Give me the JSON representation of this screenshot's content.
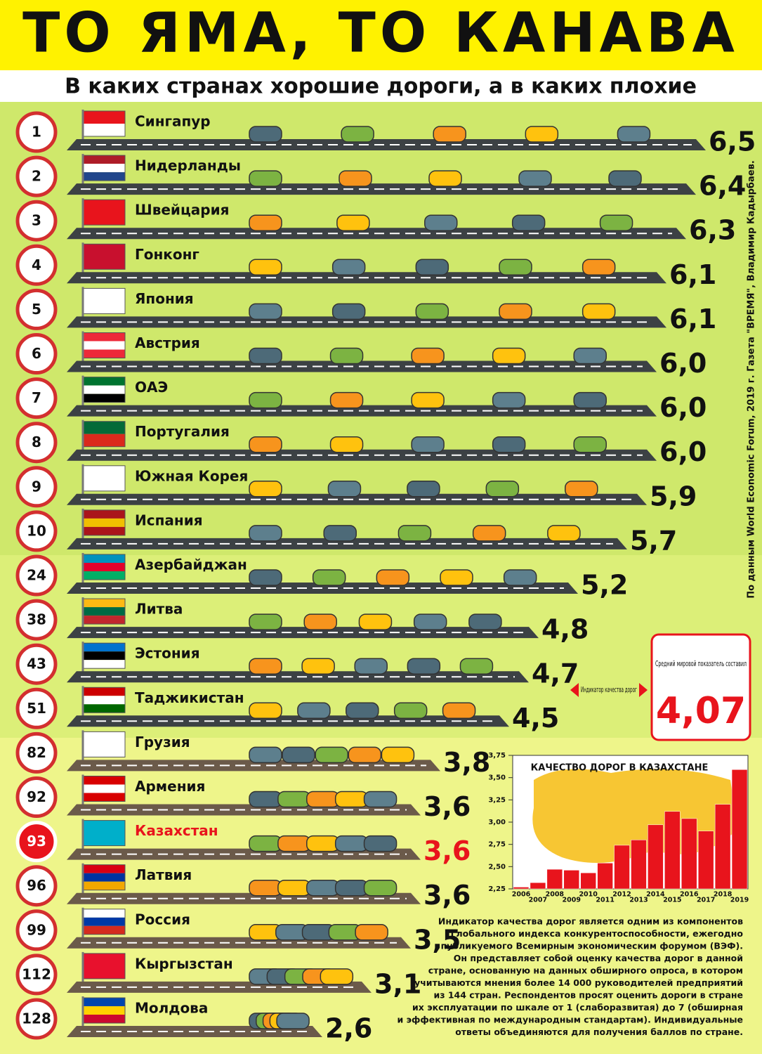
{
  "chart_data": [
    {
      "type": "road-bar",
      "title": "ТО ЯМА, ТО КАНАВА",
      "subtitle": "В каких странах хорошие дороги, а в каких плохие",
      "source": "По данным World Economic Forum, 2019 г. Газета \"ВРЕМЯ\", Владимир Кадырбаев.",
      "ranks": [
        1,
        2,
        3,
        4,
        5,
        6,
        7,
        8,
        9,
        10,
        24,
        38,
        43,
        51,
        82,
        92,
        93,
        96,
        99,
        112,
        128
      ],
      "categories": [
        "Сингапур",
        "Нидерланды",
        "Швейцария",
        "Гонконг",
        "Япония",
        "Австрия",
        "ОАЭ",
        "Португалия",
        "Южная Корея",
        "Испания",
        "Азербайджан",
        "Литва",
        "Эстония",
        "Таджикистан",
        "Грузия",
        "Армения",
        "Казахстан",
        "Латвия",
        "Россия",
        "Кыргызстан",
        "Молдова"
      ],
      "values": [
        6.5,
        6.4,
        6.3,
        6.1,
        6.1,
        6.0,
        6.0,
        6.0,
        5.9,
        5.7,
        5.2,
        4.8,
        4.7,
        4.5,
        3.8,
        3.6,
        3.6,
        3.6,
        3.5,
        3.1,
        2.6
      ],
      "value_labels": [
        "6,5",
        "6,4",
        "6,3",
        "6,1",
        "6,1",
        "6,0",
        "6,0",
        "6,0",
        "5,9",
        "5,7",
        "5,2",
        "4,8",
        "4,7",
        "4,5",
        "3,8",
        "3,6",
        "3,6",
        "3,6",
        "3,5",
        "3,1",
        "2,6"
      ],
      "xlim": [
        0,
        7
      ],
      "color": "#3c4144",
      "highlight": "Казахстан",
      "highlight_color": "#e8141c",
      "indicator_label": "Индикатор качества дорог",
      "world_average_text": "Средний мировой показатель составил",
      "world_average": {
        "value": 4.07,
        "label": "4,07"
      },
      "note": [
        "Индикатор качества дорог является одним из компонентов",
        "Глобального индекса конкурентоспособности, ежегодно",
        "публикуемого Всемирным экономическим форумом (ВЭФ).",
        "Он представляет собой оценку качества дорог в данной",
        "стране, основанную на данных обширного опроса, в котором",
        "учитываются мнения более 14 000 руководителей предприятий",
        "из 144 стран. Респондентов просят оценить дороги в стране",
        "их эксплуатации по шкале от 1 (слаборазвитая) до 7 (обширная",
        "и эффективная по международным стандартам). Индивидуальные",
        "ответы объединяются для получения баллов по стране."
      ]
    },
    {
      "type": "bar",
      "title": "КАЧЕСТВО ДОРОГ В КАЗАХСТАНЕ",
      "categories": [
        "2006",
        "2007",
        "2008",
        "2009",
        "2010",
        "2011",
        "2012",
        "2013",
        "2014",
        "2015",
        "2016",
        "2017",
        "2018",
        "2019"
      ],
      "values": [
        2.27,
        2.32,
        2.47,
        2.46,
        2.43,
        2.54,
        2.74,
        2.8,
        2.97,
        3.12,
        3.04,
        2.9,
        3.2,
        3.59
      ],
      "color": "#e8141c",
      "ylim": [
        2.25,
        3.75
      ],
      "yticks": [
        {
          "value": 2.25,
          "label": "2,25"
        },
        {
          "value": 2.5,
          "label": "2,50"
        },
        {
          "value": 2.75,
          "label": "2,75"
        },
        {
          "value": 3.0,
          "label": "3,00"
        },
        {
          "value": 3.25,
          "label": "3,25"
        },
        {
          "value": 3.5,
          "label": "3,50"
        },
        {
          "value": 3.75,
          "label": "3,75"
        }
      ]
    }
  ]
}
